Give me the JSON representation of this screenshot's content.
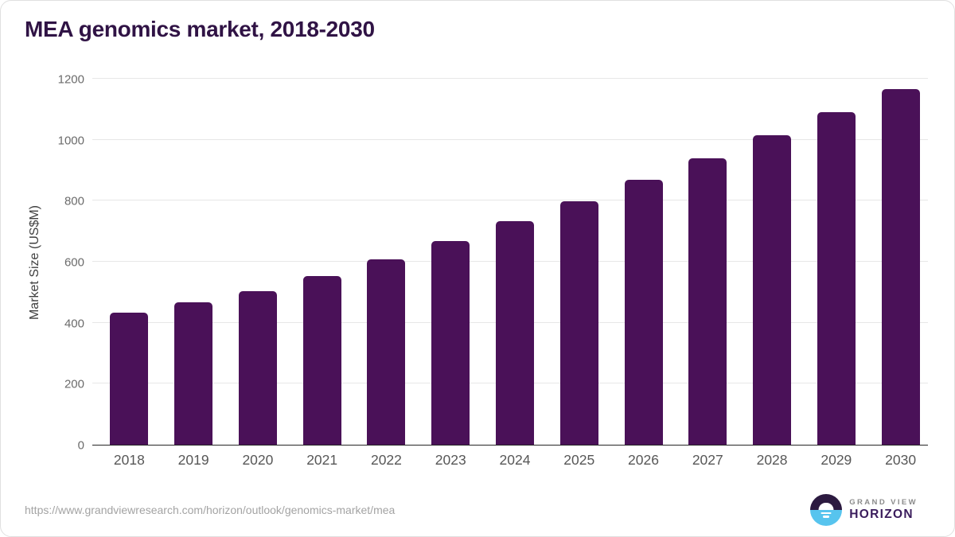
{
  "page": {
    "title": "MEA genomics market, 2018-2030"
  },
  "chart_data": {
    "type": "bar",
    "title": "MEA genomics market, 2018-2030",
    "categories": [
      "2018",
      "2019",
      "2020",
      "2021",
      "2022",
      "2023",
      "2024",
      "2025",
      "2026",
      "2027",
      "2028",
      "2029",
      "2030"
    ],
    "values": [
      434,
      466,
      503,
      552,
      607,
      668,
      733,
      798,
      869,
      939,
      1015,
      1090,
      1166
    ],
    "xlabel": "",
    "ylabel": "Market Size (US$M)",
    "ylim": [
      0,
      1200
    ],
    "yticks": [
      0,
      200,
      400,
      600,
      800,
      1000,
      1200
    ],
    "grid": "horizontal",
    "legend": "none",
    "bar_color": "#4a1158",
    "gridline_color": "#e7e7e7",
    "axis_line_color": "#262626",
    "y_tick_label_color": "#6b6b6b",
    "x_tick_label_color": "#575757"
  },
  "footer": {
    "source_url": "https://www.grandviewresearch.com/horizon/outlook/genomics-market/mea",
    "logo": {
      "brand_top": "GRAND VIEW",
      "brand_bottom": "HORIZON",
      "mark_top_color": "#2c1a40",
      "mark_bottom_color": "#57c4ee",
      "brand_bottom_color": "#3a1c5c"
    }
  },
  "colors": {
    "title_text": "#301345",
    "background": "#ffffff",
    "card_border": "#e0e0e0",
    "url_text": "#a3a3a3"
  }
}
